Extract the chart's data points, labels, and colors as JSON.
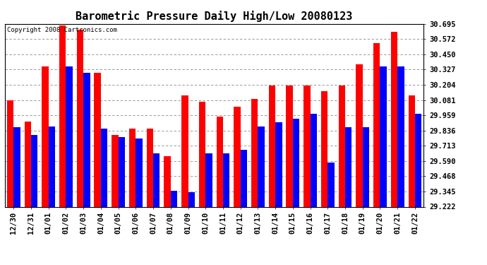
{
  "title": "Barometric Pressure Daily High/Low 20080123",
  "copyright": "Copyright 2008 Cartronics.com",
  "categories": [
    "12/30",
    "12/31",
    "01/01",
    "01/02",
    "01/03",
    "01/04",
    "01/05",
    "01/06",
    "01/07",
    "01/08",
    "01/09",
    "01/10",
    "01/11",
    "01/12",
    "01/13",
    "01/14",
    "01/15",
    "01/16",
    "01/17",
    "01/18",
    "01/19",
    "01/20",
    "01/21",
    "01/22"
  ],
  "highs": [
    30.08,
    29.91,
    30.35,
    30.68,
    30.65,
    30.3,
    29.8,
    29.85,
    29.85,
    29.63,
    30.12,
    30.07,
    29.95,
    30.03,
    30.09,
    30.2,
    30.2,
    30.2,
    30.15,
    30.2,
    30.37,
    30.54,
    30.63,
    30.12
  ],
  "lows": [
    29.86,
    29.8,
    29.87,
    30.35,
    30.3,
    29.85,
    29.78,
    29.77,
    29.65,
    29.35,
    29.34,
    29.65,
    29.65,
    29.68,
    29.87,
    29.9,
    29.93,
    29.97,
    29.58,
    29.86,
    29.86,
    30.35,
    30.35,
    29.97
  ],
  "bar_color_high": "#ff0000",
  "bar_color_low": "#0000ff",
  "bg_color": "#ffffff",
  "plot_bg_color": "#ffffff",
  "grid_color": "#888888",
  "ylim_min": 29.222,
  "ylim_max": 30.695,
  "yticks": [
    29.222,
    29.345,
    29.468,
    29.59,
    29.713,
    29.836,
    29.959,
    30.081,
    30.204,
    30.327,
    30.45,
    30.572,
    30.695
  ],
  "title_fontsize": 11,
  "tick_fontsize": 7.5,
  "copyright_fontsize": 6.5
}
